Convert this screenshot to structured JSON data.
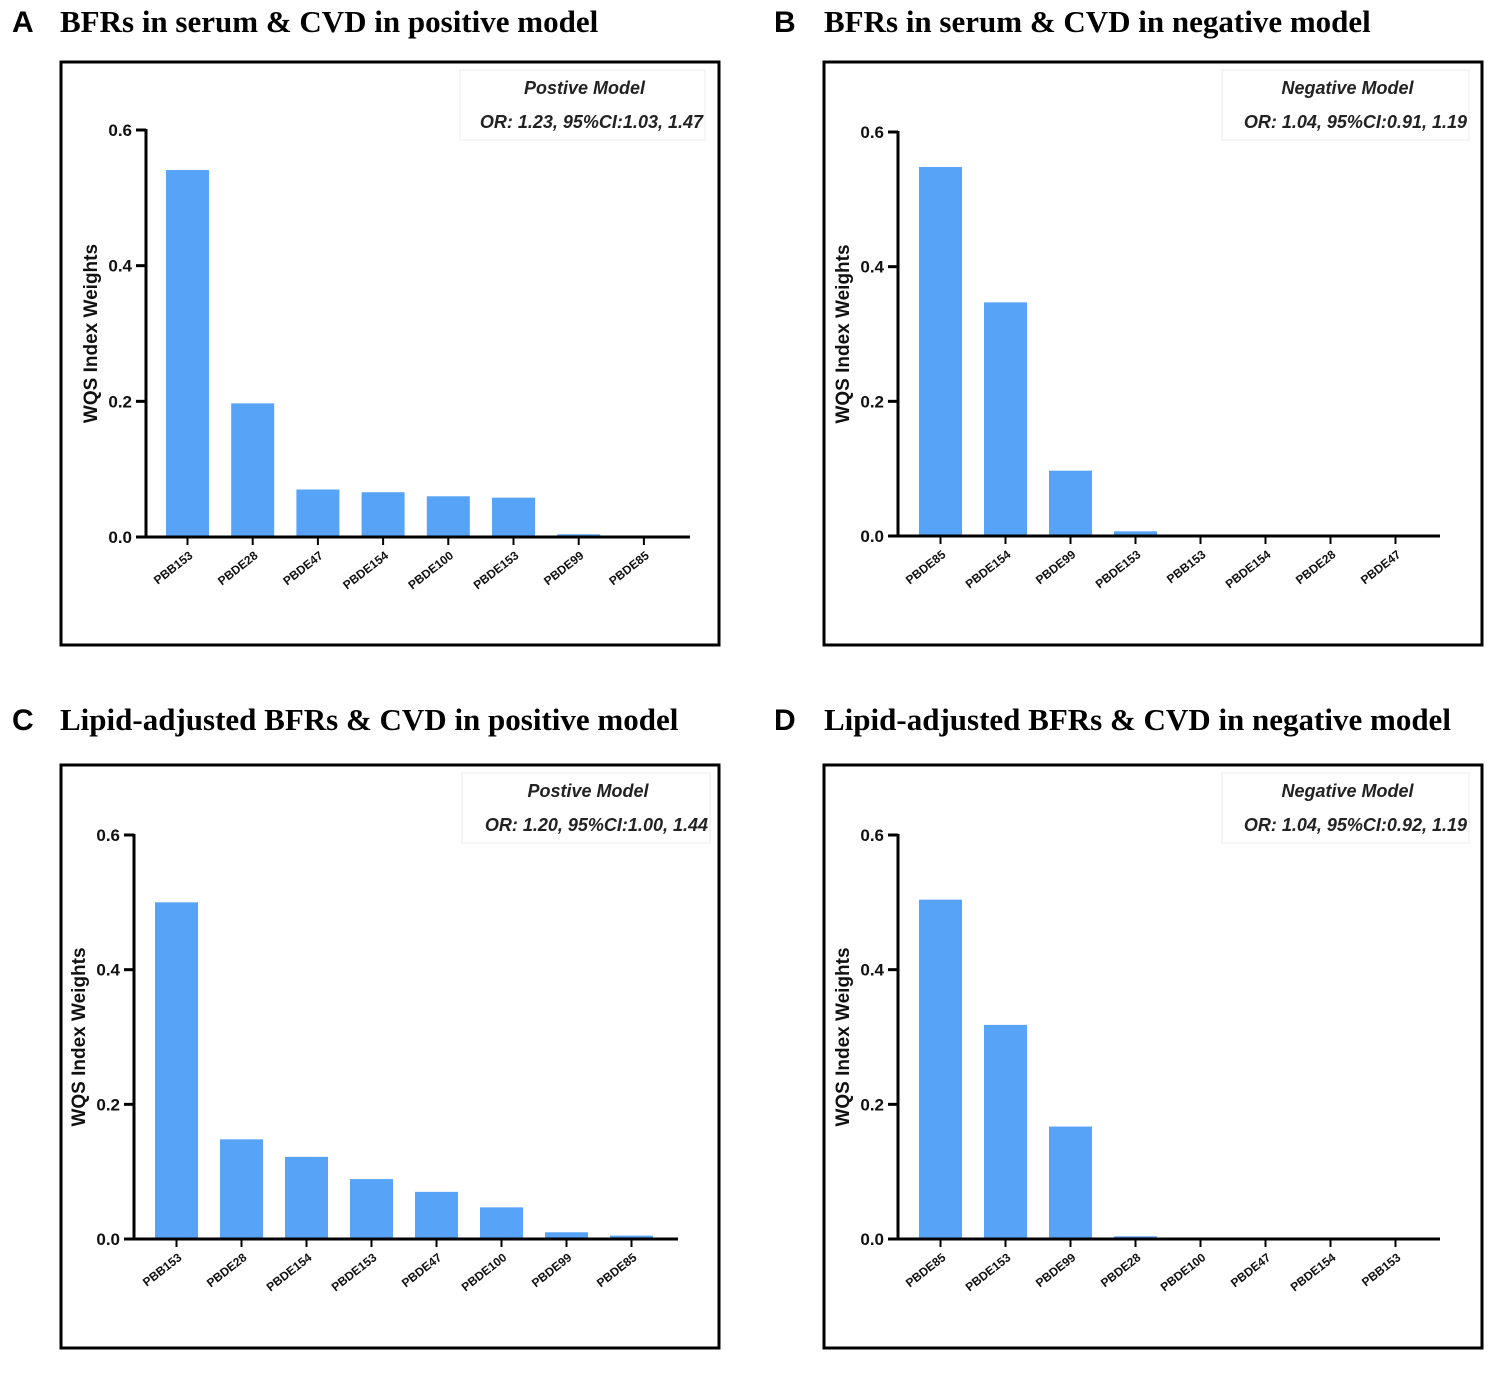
{
  "colors": {
    "bar": "#57a3f7",
    "axis": "#000000",
    "frame": "#000000"
  },
  "chart_data": [
    {
      "panel": "A",
      "title": "BFRs in serum & CVD in positive model",
      "type": "bar",
      "model_label": "Postive Model",
      "stats_label": "OR: 1.23, 95%CI:1.03, 1.47",
      "ylabel": "WQS Index Weights",
      "xlabel": "",
      "ylim": [
        0,
        0.6
      ],
      "yticks": [
        "0.0",
        "0.2",
        "0.4",
        "0.6"
      ],
      "categories": [
        "PBB153",
        "PBDE28",
        "PBDE47",
        "PBDE154",
        "PBDE100",
        "PBDE153",
        "PBDE99",
        "PBDE85"
      ],
      "values": [
        0.541,
        0.197,
        0.07,
        0.066,
        0.06,
        0.058,
        0.004,
        0.001
      ]
    },
    {
      "panel": "B",
      "title": "BFRs in serum & CVD in negative model",
      "type": "bar",
      "model_label": "Negative Model",
      "stats_label": "OR: 1.04, 95%CI:0.91, 1.19",
      "ylabel": "WQS Index Weights",
      "xlabel": "",
      "ylim": [
        0,
        0.6
      ],
      "yticks": [
        "0.0",
        "0.2",
        "0.4",
        "0.6"
      ],
      "categories": [
        "PBDE85",
        "PBDE154",
        "PBDE99",
        "PBDE153",
        "PBB153",
        "PBDE154",
        "PBDE28",
        "PBDE47"
      ],
      "values": [
        0.548,
        0.347,
        0.097,
        0.007,
        0.001,
        0.001,
        0.001,
        0.001
      ]
    },
    {
      "panel": "C",
      "title": "Lipid-adjusted BFRs & CVD in positive model",
      "type": "bar",
      "model_label": "Postive Model",
      "stats_label": "OR: 1.20, 95%CI:1.00, 1.44",
      "ylabel": "WQS Index Weights",
      "xlabel": "",
      "ylim": [
        0,
        0.6
      ],
      "yticks": [
        "0.0",
        "0.2",
        "0.4",
        "0.6"
      ],
      "categories": [
        "PBB153",
        "PBDE28",
        "PBDE154",
        "PBDE153",
        "PBDE47",
        "PBDE100",
        "PBDE99",
        "PBDE85"
      ],
      "values": [
        0.5,
        0.148,
        0.122,
        0.089,
        0.07,
        0.047,
        0.01,
        0.005
      ]
    },
    {
      "panel": "D",
      "title": "Lipid-adjusted BFRs & CVD in negative model",
      "type": "bar",
      "model_label": "Negative Model",
      "stats_label": "OR: 1.04, 95%CI:0.92, 1.19",
      "ylabel": "WQS Index Weights",
      "xlabel": "",
      "ylim": [
        0,
        0.6
      ],
      "yticks": [
        "0.0",
        "0.2",
        "0.4",
        "0.6"
      ],
      "categories": [
        "PBDE85",
        "PBDE153",
        "PBDE99",
        "PBDE28",
        "PBDE100",
        "PBDE47",
        "PBDE154",
        "PBB153"
      ],
      "values": [
        0.504,
        0.318,
        0.167,
        0.004,
        0.001,
        0.001,
        0.001,
        0.001
      ]
    }
  ]
}
